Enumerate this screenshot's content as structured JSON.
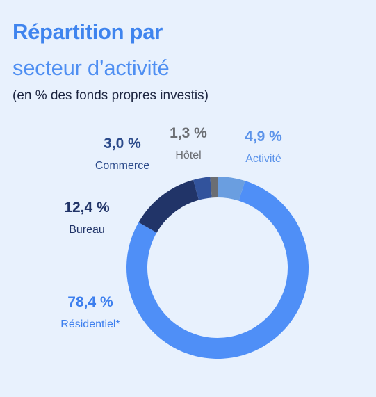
{
  "header": {
    "title_bold": "Répartition par",
    "title_light": "secteur d’activité",
    "subtitle": "(en % des fonds propres investis)"
  },
  "chart_data": {
    "type": "donut",
    "slices": [
      {
        "name": "Activité",
        "value": 4.9,
        "label": "4,9 %",
        "color": "#6a9ee0",
        "text_color": "#5b93ea"
      },
      {
        "name": "Résidentiel*",
        "value": 78.4,
        "label": "78,4 %",
        "color": "#4f8ff7",
        "text_color": "#3d7fee"
      },
      {
        "name": "Bureau",
        "value": 12.4,
        "label": "12,4 %",
        "color": "#213468",
        "text_color": "#213468"
      },
      {
        "name": "Commerce",
        "value": 3.0,
        "label": "3,0 %",
        "color": "#32539c",
        "text_color": "#2b4a8a"
      },
      {
        "name": "Hôtel",
        "value": 1.3,
        "label": "1,3 %",
        "color": "#6b6e73",
        "text_color": "#6b6e73"
      }
    ]
  }
}
